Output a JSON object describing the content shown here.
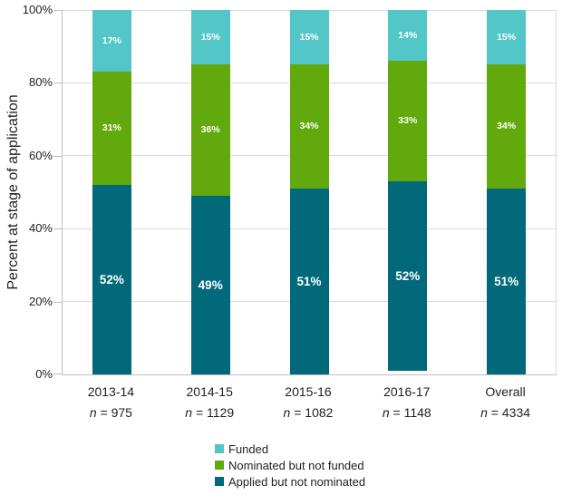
{
  "chart_data": {
    "type": "bar",
    "variant": "stacked-column-100",
    "title": "",
    "ylabel": "Percent at stage of application",
    "xlabel": "",
    "ylim": [
      0,
      100
    ],
    "yticks": {
      "values": [
        0,
        20,
        40,
        60,
        80,
        100
      ],
      "labels": [
        "0%",
        "20%",
        "40%",
        "60%",
        "80%",
        "100%"
      ]
    },
    "grid": "horizontal",
    "legend_position": "bottom",
    "categories": [
      {
        "label": "2013-14",
        "n": "n = 975"
      },
      {
        "label": "2014-15",
        "n": "n = 1129"
      },
      {
        "label": "2015-16",
        "n": "n = 1082"
      },
      {
        "label": "2016-17",
        "n": "n = 1148"
      },
      {
        "label": "Overall",
        "n": "n = 4334"
      }
    ],
    "series": [
      {
        "name": "Funded",
        "color": "#53C6C8",
        "values": [
          17,
          15,
          15,
          14,
          15
        ]
      },
      {
        "name": "Nominated but not funded",
        "color": "#61A90D",
        "values": [
          31,
          36,
          34,
          33,
          34
        ]
      },
      {
        "name": "Applied but not nominated",
        "color": "#01697A",
        "values": [
          52,
          49,
          51,
          52,
          51
        ]
      }
    ],
    "data_label_format": "{value}%"
  },
  "colors": {
    "background": "#FFFFFF",
    "gridline": "#D9D9D9",
    "axis_line": "#BFBFBF",
    "text": "#1F1F1F",
    "data_label": "#FFFFFF"
  }
}
